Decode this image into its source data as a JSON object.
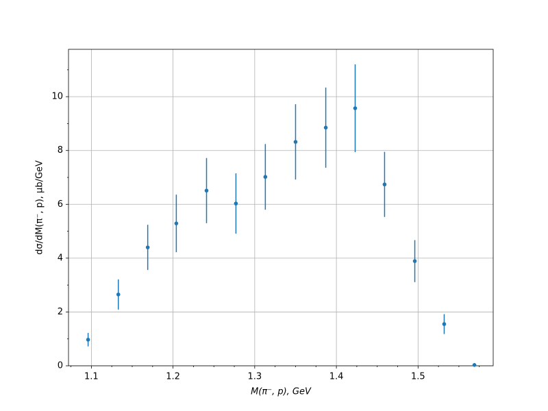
{
  "chart_data": {
    "type": "errorbar_scatter",
    "x_label": "M(π⁻, p), GeV",
    "y_label": "dσ/dM(π⁻, p), μb/GeV",
    "color": "#1f77b4",
    "grid": true,
    "x": [
      1.096,
      1.133,
      1.169,
      1.204,
      1.241,
      1.277,
      1.313,
      1.35,
      1.387,
      1.423,
      1.459,
      1.496,
      1.532,
      1.569
    ],
    "values": [
      0.97,
      2.65,
      4.4,
      5.29,
      6.51,
      6.03,
      7.02,
      8.32,
      8.85,
      9.57,
      6.74,
      3.89,
      1.55,
      0.03
    ],
    "errors": [
      0.25,
      0.56,
      0.84,
      1.07,
      1.21,
      1.12,
      1.22,
      1.4,
      1.49,
      1.63,
      1.21,
      0.78,
      0.37,
      0.03
    ],
    "xlim": [
      1.072,
      1.592
    ],
    "ylim": [
      0,
      11.76
    ],
    "xticks": [
      1.1,
      1.2,
      1.3,
      1.4,
      1.5
    ],
    "yticks": [
      0,
      2,
      4,
      6,
      8,
      10
    ],
    "xticks_minor": [
      1.075,
      1.125,
      1.15,
      1.175,
      1.225,
      1.25,
      1.275,
      1.325,
      1.35,
      1.375,
      1.425,
      1.45,
      1.475,
      1.525,
      1.55,
      1.575
    ],
    "yticks_minor": [
      1,
      3,
      5,
      7,
      9,
      11
    ]
  }
}
